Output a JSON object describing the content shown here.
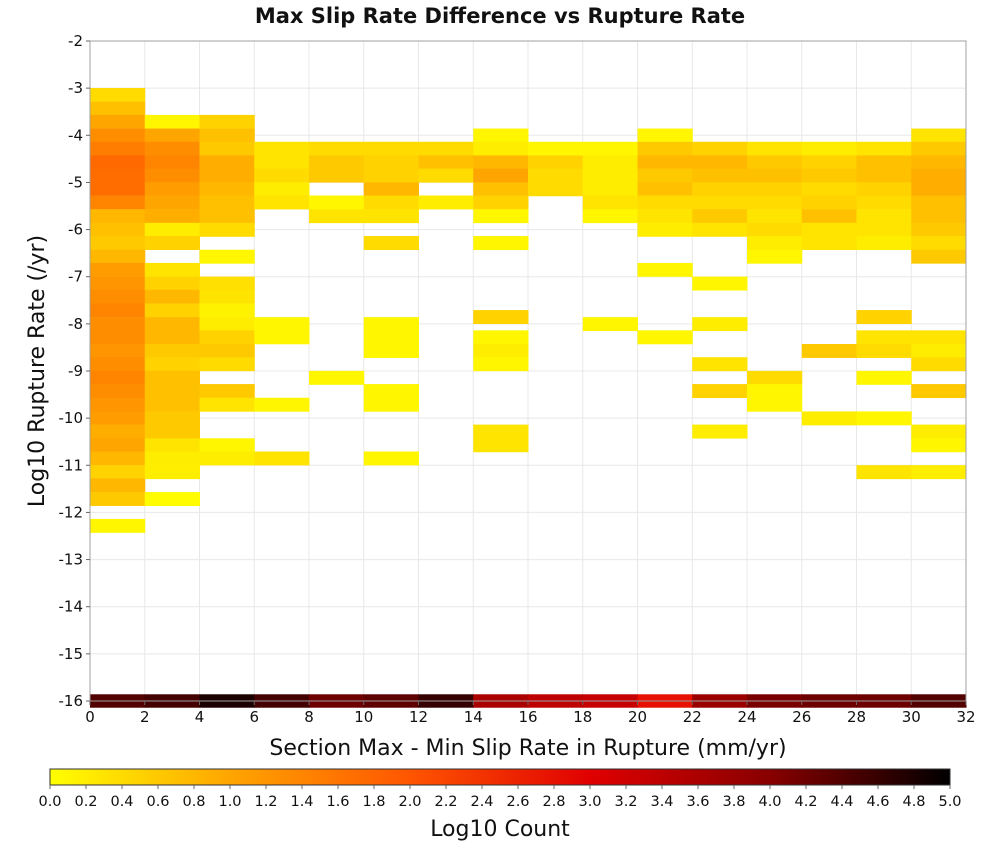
{
  "chart_data": {
    "type": "heatmap",
    "title": "Max Slip Rate Difference vs Rupture Rate",
    "xlabel": "Section Max - Min Slip Rate in Rupture (mm/yr)",
    "ylabel": "Log10 Rupture Rate (/yr)",
    "xlim": [
      0,
      32
    ],
    "ylim": [
      -16,
      -2
    ],
    "x_ticks": [
      "0",
      "2",
      "4",
      "6",
      "8",
      "10",
      "12",
      "14",
      "16",
      "18",
      "20",
      "22",
      "24",
      "26",
      "28",
      "30",
      "32"
    ],
    "y_ticks": [
      "-2",
      "-3",
      "-4",
      "-5",
      "-6",
      "-7",
      "-8",
      "-9",
      "-10",
      "-11",
      "-12",
      "-13",
      "-14",
      "-15",
      "-16"
    ],
    "grid": true,
    "x_bin_width": 2,
    "y_bin_height": 0.285,
    "colorbar": {
      "label": "Log10 Count",
      "min": 0.0,
      "max": 5.0,
      "ticks": [
        "0.0",
        "0.2",
        "0.4",
        "0.6",
        "0.8",
        "1.0",
        "1.2",
        "1.4",
        "1.6",
        "1.8",
        "2.0",
        "2.2",
        "2.4",
        "2.6",
        "2.8",
        "3.0",
        "3.2",
        "3.4",
        "3.6",
        "3.8",
        "4.0",
        "4.2",
        "4.4",
        "4.6",
        "4.8",
        "5.0"
      ],
      "colors": [
        "#ffff00",
        "#ffa500",
        "#ff5500",
        "#e00000",
        "#880000",
        "#000000"
      ]
    },
    "cells": [
      {
        "x": 0,
        "y": -3.14,
        "v": 0.4
      },
      {
        "x": 0,
        "y": -3.43,
        "v": 0.7
      },
      {
        "x": 0,
        "y": -3.71,
        "v": 1.0
      },
      {
        "x": 0,
        "y": -4.0,
        "v": 1.3
      },
      {
        "x": 0,
        "y": -4.28,
        "v": 1.5
      },
      {
        "x": 0,
        "y": -4.57,
        "v": 1.75
      },
      {
        "x": 0,
        "y": -4.85,
        "v": 1.7
      },
      {
        "x": 0,
        "y": -5.14,
        "v": 1.7
      },
      {
        "x": 0,
        "y": -5.42,
        "v": 1.4
      },
      {
        "x": 0,
        "y": -5.71,
        "v": 0.8
      },
      {
        "x": 0,
        "y": -6.0,
        "v": 0.7
      },
      {
        "x": 0,
        "y": -6.28,
        "v": 0.6
      },
      {
        "x": 0,
        "y": -6.57,
        "v": 0.8
      },
      {
        "x": 0,
        "y": -6.85,
        "v": 1.1
      },
      {
        "x": 0,
        "y": -7.14,
        "v": 1.2
      },
      {
        "x": 0,
        "y": -7.42,
        "v": 1.3
      },
      {
        "x": 0,
        "y": -7.71,
        "v": 1.4
      },
      {
        "x": 0,
        "y": -8.0,
        "v": 1.3
      },
      {
        "x": 0,
        "y": -8.28,
        "v": 1.3
      },
      {
        "x": 0,
        "y": -8.57,
        "v": 1.2
      },
      {
        "x": 0,
        "y": -8.85,
        "v": 1.3
      },
      {
        "x": 0,
        "y": -9.14,
        "v": 1.4
      },
      {
        "x": 0,
        "y": -9.42,
        "v": 1.3
      },
      {
        "x": 0,
        "y": -9.71,
        "v": 1.2
      },
      {
        "x": 0,
        "y": -10.0,
        "v": 1.1
      },
      {
        "x": 0,
        "y": -10.28,
        "v": 0.9
      },
      {
        "x": 0,
        "y": -10.57,
        "v": 1.0
      },
      {
        "x": 0,
        "y": -10.85,
        "v": 0.8
      },
      {
        "x": 0,
        "y": -11.14,
        "v": 0.5
      },
      {
        "x": 0,
        "y": -11.42,
        "v": 0.8
      },
      {
        "x": 0,
        "y": -11.71,
        "v": 0.6
      },
      {
        "x": 0,
        "y": -12.28,
        "v": 0.1
      },
      {
        "x": 2,
        "y": -3.71,
        "v": 0.1
      },
      {
        "x": 2,
        "y": -4.0,
        "v": 1.0
      },
      {
        "x": 2,
        "y": -4.28,
        "v": 1.3
      },
      {
        "x": 2,
        "y": -4.57,
        "v": 1.4
      },
      {
        "x": 2,
        "y": -4.85,
        "v": 1.3
      },
      {
        "x": 2,
        "y": -5.14,
        "v": 1.1
      },
      {
        "x": 2,
        "y": -5.42,
        "v": 1.0
      },
      {
        "x": 2,
        "y": -5.71,
        "v": 0.9
      },
      {
        "x": 2,
        "y": -6.0,
        "v": 0.2
      },
      {
        "x": 2,
        "y": -6.28,
        "v": 0.5
      },
      {
        "x": 2,
        "y": -6.85,
        "v": 0.3
      },
      {
        "x": 2,
        "y": -7.14,
        "v": 0.5
      },
      {
        "x": 2,
        "y": -7.42,
        "v": 0.8
      },
      {
        "x": 2,
        "y": -7.71,
        "v": 0.5
      },
      {
        "x": 2,
        "y": -8.0,
        "v": 0.8
      },
      {
        "x": 2,
        "y": -8.28,
        "v": 0.8
      },
      {
        "x": 2,
        "y": -8.57,
        "v": 0.6
      },
      {
        "x": 2,
        "y": -8.85,
        "v": 0.5
      },
      {
        "x": 2,
        "y": -9.14,
        "v": 0.7
      },
      {
        "x": 2,
        "y": -9.42,
        "v": 0.7
      },
      {
        "x": 2,
        "y": -9.71,
        "v": 0.7
      },
      {
        "x": 2,
        "y": -10.0,
        "v": 0.6
      },
      {
        "x": 2,
        "y": -10.28,
        "v": 0.6
      },
      {
        "x": 2,
        "y": -10.57,
        "v": 0.3
      },
      {
        "x": 2,
        "y": -10.85,
        "v": 0.2
      },
      {
        "x": 2,
        "y": -11.14,
        "v": 0.2
      },
      {
        "x": 2,
        "y": -11.71,
        "v": 0.05
      },
      {
        "x": 4,
        "y": -3.71,
        "v": 0.5
      },
      {
        "x": 4,
        "y": -4.0,
        "v": 0.7
      },
      {
        "x": 4,
        "y": -4.28,
        "v": 0.6
      },
      {
        "x": 4,
        "y": -4.57,
        "v": 0.9
      },
      {
        "x": 4,
        "y": -4.85,
        "v": 0.9
      },
      {
        "x": 4,
        "y": -5.14,
        "v": 0.8
      },
      {
        "x": 4,
        "y": -5.42,
        "v": 0.7
      },
      {
        "x": 4,
        "y": -5.71,
        "v": 0.7
      },
      {
        "x": 4,
        "y": -6.0,
        "v": 0.4
      },
      {
        "x": 4,
        "y": -6.57,
        "v": 0.1
      },
      {
        "x": 4,
        "y": -7.14,
        "v": 0.35
      },
      {
        "x": 4,
        "y": -7.42,
        "v": 0.3
      },
      {
        "x": 4,
        "y": -7.71,
        "v": 0.15
      },
      {
        "x": 4,
        "y": -8.0,
        "v": 0.2
      },
      {
        "x": 4,
        "y": -8.28,
        "v": 0.5
      },
      {
        "x": 4,
        "y": -8.57,
        "v": 0.6
      },
      {
        "x": 4,
        "y": -8.85,
        "v": 0.4
      },
      {
        "x": 4,
        "y": -9.42,
        "v": 0.6
      },
      {
        "x": 4,
        "y": -9.71,
        "v": 0.3
      },
      {
        "x": 4,
        "y": -10.57,
        "v": 0.1
      },
      {
        "x": 4,
        "y": -10.85,
        "v": 0.2
      },
      {
        "x": 6,
        "y": -4.28,
        "v": 0.3
      },
      {
        "x": 6,
        "y": -4.57,
        "v": 0.3
      },
      {
        "x": 6,
        "y": -4.85,
        "v": 0.4
      },
      {
        "x": 6,
        "y": -5.14,
        "v": 0.2
      },
      {
        "x": 6,
        "y": -5.42,
        "v": 0.3
      },
      {
        "x": 6,
        "y": -8.0,
        "v": 0.1
      },
      {
        "x": 6,
        "y": -8.28,
        "v": 0.1
      },
      {
        "x": 6,
        "y": -9.71,
        "v": 0.1
      },
      {
        "x": 6,
        "y": -10.85,
        "v": 0.3
      },
      {
        "x": 8,
        "y": -4.28,
        "v": 0.4
      },
      {
        "x": 8,
        "y": -4.57,
        "v": 0.6
      },
      {
        "x": 8,
        "y": -4.85,
        "v": 0.6
      },
      {
        "x": 8,
        "y": -5.42,
        "v": 0.1
      },
      {
        "x": 8,
        "y": -5.71,
        "v": 0.3
      },
      {
        "x": 8,
        "y": -9.14,
        "v": 0.1
      },
      {
        "x": 10,
        "y": -4.28,
        "v": 0.4
      },
      {
        "x": 10,
        "y": -4.57,
        "v": 0.5
      },
      {
        "x": 10,
        "y": -4.85,
        "v": 0.5
      },
      {
        "x": 10,
        "y": -5.14,
        "v": 0.8
      },
      {
        "x": 10,
        "y": -5.42,
        "v": 0.4
      },
      {
        "x": 10,
        "y": -5.71,
        "v": 0.3
      },
      {
        "x": 10,
        "y": -6.28,
        "v": 0.4
      },
      {
        "x": 10,
        "y": -8.0,
        "v": 0.1
      },
      {
        "x": 10,
        "y": -8.28,
        "v": 0.1
      },
      {
        "x": 10,
        "y": -8.57,
        "v": 0.1
      },
      {
        "x": 10,
        "y": -9.42,
        "v": 0.1
      },
      {
        "x": 10,
        "y": -9.71,
        "v": 0.1
      },
      {
        "x": 10,
        "y": -10.85,
        "v": 0.1
      },
      {
        "x": 12,
        "y": -4.28,
        "v": 0.4
      },
      {
        "x": 12,
        "y": -4.57,
        "v": 0.7
      },
      {
        "x": 12,
        "y": -4.85,
        "v": 0.4
      },
      {
        "x": 12,
        "y": -5.42,
        "v": 0.2
      },
      {
        "x": 14,
        "y": -4.0,
        "v": 0.1
      },
      {
        "x": 14,
        "y": -4.28,
        "v": 0.2
      },
      {
        "x": 14,
        "y": -4.57,
        "v": 0.8
      },
      {
        "x": 14,
        "y": -4.85,
        "v": 1.0
      },
      {
        "x": 14,
        "y": -5.14,
        "v": 0.7
      },
      {
        "x": 14,
        "y": -5.42,
        "v": 0.5
      },
      {
        "x": 14,
        "y": -5.71,
        "v": 0.1
      },
      {
        "x": 14,
        "y": -6.28,
        "v": 0.1
      },
      {
        "x": 14,
        "y": -7.85,
        "v": 0.5
      },
      {
        "x": 14,
        "y": -8.28,
        "v": 0.1
      },
      {
        "x": 14,
        "y": -8.57,
        "v": 0.2
      },
      {
        "x": 14,
        "y": -8.85,
        "v": 0.1
      },
      {
        "x": 14,
        "y": -10.28,
        "v": 0.3
      },
      {
        "x": 14,
        "y": -10.57,
        "v": 0.3
      },
      {
        "x": 16,
        "y": -4.28,
        "v": 0.1
      },
      {
        "x": 16,
        "y": -4.57,
        "v": 0.5
      },
      {
        "x": 16,
        "y": -4.85,
        "v": 0.4
      },
      {
        "x": 16,
        "y": -5.14,
        "v": 0.4
      },
      {
        "x": 18,
        "y": -4.28,
        "v": 0.1
      },
      {
        "x": 18,
        "y": -4.57,
        "v": 0.2
      },
      {
        "x": 18,
        "y": -4.85,
        "v": 0.2
      },
      {
        "x": 18,
        "y": -5.14,
        "v": 0.2
      },
      {
        "x": 18,
        "y": -5.42,
        "v": 0.3
      },
      {
        "x": 18,
        "y": -5.71,
        "v": 0.1
      },
      {
        "x": 18,
        "y": -8.0,
        "v": 0.1
      },
      {
        "x": 20,
        "y": -4.0,
        "v": 0.1
      },
      {
        "x": 20,
        "y": -4.28,
        "v": 0.6
      },
      {
        "x": 20,
        "y": -4.57,
        "v": 0.8
      },
      {
        "x": 20,
        "y": -4.85,
        "v": 0.6
      },
      {
        "x": 20,
        "y": -5.14,
        "v": 0.7
      },
      {
        "x": 20,
        "y": -5.42,
        "v": 0.4
      },
      {
        "x": 20,
        "y": -5.71,
        "v": 0.3
      },
      {
        "x": 20,
        "y": -6.0,
        "v": 0.2
      },
      {
        "x": 20,
        "y": -6.85,
        "v": 0.1
      },
      {
        "x": 20,
        "y": -8.28,
        "v": 0.1
      },
      {
        "x": 22,
        "y": -4.28,
        "v": 0.5
      },
      {
        "x": 22,
        "y": -4.57,
        "v": 0.8
      },
      {
        "x": 22,
        "y": -4.85,
        "v": 0.7
      },
      {
        "x": 22,
        "y": -5.14,
        "v": 0.5
      },
      {
        "x": 22,
        "y": -5.42,
        "v": 0.4
      },
      {
        "x": 22,
        "y": -5.71,
        "v": 0.6
      },
      {
        "x": 22,
        "y": -6.0,
        "v": 0.3
      },
      {
        "x": 22,
        "y": -7.14,
        "v": 0.1
      },
      {
        "x": 22,
        "y": -8.0,
        "v": 0.2
      },
      {
        "x": 22,
        "y": -8.85,
        "v": 0.3
      },
      {
        "x": 22,
        "y": -9.42,
        "v": 0.5
      },
      {
        "x": 22,
        "y": -10.28,
        "v": 0.2
      },
      {
        "x": 24,
        "y": -4.28,
        "v": 0.3
      },
      {
        "x": 24,
        "y": -4.57,
        "v": 0.6
      },
      {
        "x": 24,
        "y": -4.85,
        "v": 0.7
      },
      {
        "x": 24,
        "y": -5.14,
        "v": 0.5
      },
      {
        "x": 24,
        "y": -5.42,
        "v": 0.4
      },
      {
        "x": 24,
        "y": -5.71,
        "v": 0.3
      },
      {
        "x": 24,
        "y": -6.0,
        "v": 0.4
      },
      {
        "x": 24,
        "y": -6.28,
        "v": 0.2
      },
      {
        "x": 24,
        "y": -6.57,
        "v": 0.1
      },
      {
        "x": 24,
        "y": -9.14,
        "v": 0.4
      },
      {
        "x": 24,
        "y": -9.42,
        "v": 0.1
      },
      {
        "x": 24,
        "y": -9.71,
        "v": 0.1
      },
      {
        "x": 26,
        "y": -4.28,
        "v": 0.2
      },
      {
        "x": 26,
        "y": -4.57,
        "v": 0.5
      },
      {
        "x": 26,
        "y": -4.85,
        "v": 0.6
      },
      {
        "x": 26,
        "y": -5.14,
        "v": 0.4
      },
      {
        "x": 26,
        "y": -5.42,
        "v": 0.5
      },
      {
        "x": 26,
        "y": -5.71,
        "v": 0.7
      },
      {
        "x": 26,
        "y": -6.0,
        "v": 0.3
      },
      {
        "x": 26,
        "y": -6.28,
        "v": 0.3
      },
      {
        "x": 26,
        "y": -8.57,
        "v": 0.6
      },
      {
        "x": 26,
        "y": -10.0,
        "v": 0.2
      },
      {
        "x": 28,
        "y": -4.28,
        "v": 0.3
      },
      {
        "x": 28,
        "y": -4.57,
        "v": 0.7
      },
      {
        "x": 28,
        "y": -4.85,
        "v": 0.7
      },
      {
        "x": 28,
        "y": -5.14,
        "v": 0.5
      },
      {
        "x": 28,
        "y": -5.42,
        "v": 0.4
      },
      {
        "x": 28,
        "y": -5.71,
        "v": 0.3
      },
      {
        "x": 28,
        "y": -6.0,
        "v": 0.3
      },
      {
        "x": 28,
        "y": -6.28,
        "v": 0.2
      },
      {
        "x": 28,
        "y": -7.85,
        "v": 0.5
      },
      {
        "x": 28,
        "y": -8.28,
        "v": 0.3
      },
      {
        "x": 28,
        "y": -8.57,
        "v": 0.4
      },
      {
        "x": 28,
        "y": -9.14,
        "v": 0.1
      },
      {
        "x": 28,
        "y": -10.0,
        "v": 0.1
      },
      {
        "x": 28,
        "y": -11.14,
        "v": 0.3
      },
      {
        "x": 30,
        "y": -4.0,
        "v": 0.3
      },
      {
        "x": 30,
        "y": -4.28,
        "v": 0.6
      },
      {
        "x": 30,
        "y": -4.57,
        "v": 0.8
      },
      {
        "x": 30,
        "y": -4.85,
        "v": 0.9
      },
      {
        "x": 30,
        "y": -5.14,
        "v": 0.9
      },
      {
        "x": 30,
        "y": -5.42,
        "v": 0.7
      },
      {
        "x": 30,
        "y": -5.71,
        "v": 0.7
      },
      {
        "x": 30,
        "y": -6.0,
        "v": 0.6
      },
      {
        "x": 30,
        "y": -6.28,
        "v": 0.4
      },
      {
        "x": 30,
        "y": -6.57,
        "v": 0.6
      },
      {
        "x": 30,
        "y": -8.28,
        "v": 0.3
      },
      {
        "x": 30,
        "y": -8.57,
        "v": 0.2
      },
      {
        "x": 30,
        "y": -8.85,
        "v": 0.4
      },
      {
        "x": 30,
        "y": -9.42,
        "v": 0.6
      },
      {
        "x": 30,
        "y": -10.28,
        "v": 0.2
      },
      {
        "x": 30,
        "y": -10.57,
        "v": 0.1
      },
      {
        "x": 30,
        "y": -11.14,
        "v": 0.2
      }
    ],
    "bottom_row": {
      "y": -16.0,
      "values": [
        4.4,
        4.5,
        4.8,
        4.5,
        4.2,
        4.3,
        4.6,
        3.6,
        3.4,
        3.3,
        2.8,
        3.8,
        4.1,
        4.2,
        4.2,
        4.4
      ]
    }
  }
}
